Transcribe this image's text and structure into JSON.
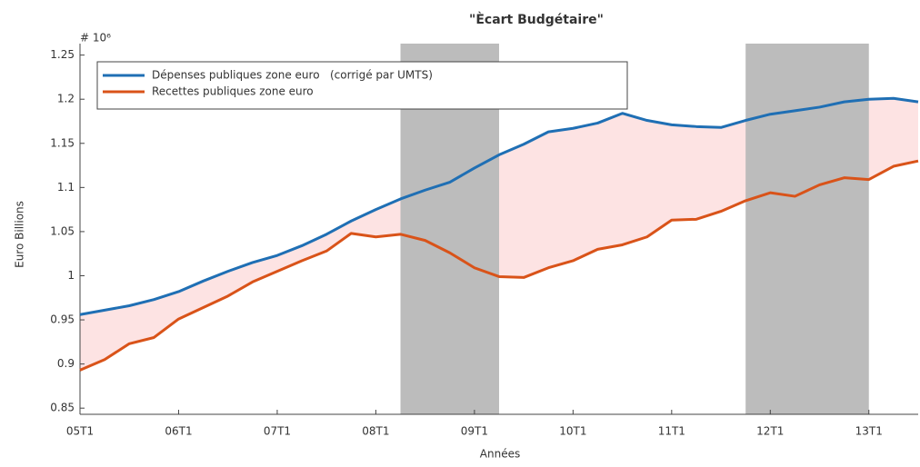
{
  "chart_data": {
    "type": "line",
    "title": "\"Ècart Budgétaire\"",
    "y_multiplier": "# 10⁶",
    "y_label": "Euro Billions",
    "x_label": "Années",
    "categories": [
      "05T1",
      null,
      null,
      null,
      "06T1",
      null,
      null,
      null,
      "07T1",
      null,
      null,
      null,
      "08T1",
      null,
      null,
      null,
      "09T1",
      null,
      null,
      null,
      "10T1",
      null,
      null,
      null,
      "11T1",
      null,
      null,
      null,
      "12T1",
      null,
      null,
      null,
      "13T1",
      null,
      null
    ],
    "series": [
      {
        "name": "Dépenses publiques zone euro   (corrigé par UMTS)",
        "color": "#1f6fb4",
        "values": [
          0.956,
          0.961,
          0.966,
          0.973,
          0.982,
          0.994,
          1.005,
          1.015,
          1.023,
          1.034,
          1.047,
          1.062,
          1.075,
          1.087,
          1.097,
          1.106,
          1.122,
          1.137,
          1.149,
          1.163,
          1.167,
          1.173,
          1.184,
          1.176,
          1.171,
          1.169,
          1.168,
          1.176,
          1.183,
          1.187,
          1.191,
          1.197,
          1.2,
          1.201,
          1.197
        ]
      },
      {
        "name": "Recettes publiques zone euro",
        "color": "#d95319",
        "values": [
          0.893,
          0.905,
          0.923,
          0.93,
          0.951,
          0.964,
          0.977,
          0.993,
          1.005,
          1.017,
          1.028,
          1.048,
          1.044,
          1.047,
          1.04,
          1.026,
          1.009,
          0.999,
          0.998,
          1.009,
          1.017,
          1.03,
          1.035,
          1.044,
          1.063,
          1.064,
          1.073,
          1.085,
          1.094,
          1.09,
          1.103,
          1.111,
          1.109,
          1.124,
          1.13
        ]
      }
    ],
    "gap_fill_color": "#fde3e3",
    "shaded_regions": [
      [
        13,
        17
      ],
      [
        27,
        32
      ]
    ],
    "shade_color": "#bcbcbc",
    "ylim": [
      0.843,
      1.263
    ],
    "yticks": [
      0.85,
      0.9,
      0.95,
      1,
      1.05,
      1.1,
      1.15,
      1.2,
      1.25
    ],
    "legend": "top-left"
  }
}
